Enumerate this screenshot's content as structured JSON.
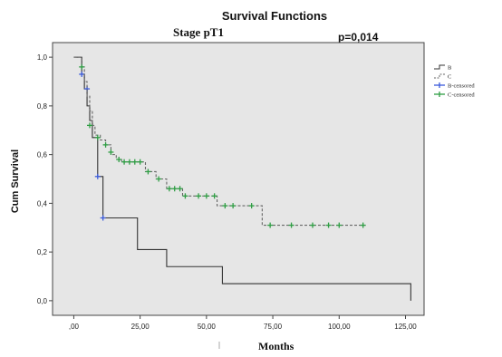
{
  "chart_data": {
    "type": "line",
    "title": "Survival Functions",
    "subtitle": "Stage pT1",
    "annotation": "p=0,014",
    "xlabel": "Months",
    "ylabel": "Cum Survival",
    "xlim": [
      -8,
      132
    ],
    "ylim": [
      -0.06,
      1.06
    ],
    "xticks": [
      0,
      25,
      50,
      75,
      100,
      125
    ],
    "xtick_labels": [
      ",00",
      "25,00",
      "50,00",
      "75,00",
      "100,00",
      "125,00"
    ],
    "yticks": [
      0,
      0.2,
      0.4,
      0.6,
      0.8,
      1.0
    ],
    "ytick_labels": [
      "0,0",
      "0,2",
      "0,4",
      "0,6",
      "0,8",
      "1,0"
    ],
    "legend_position": "right",
    "plot_background": "#e6e6e6",
    "series": [
      {
        "name": "B",
        "style": "solid",
        "color": "#333333",
        "steps": [
          [
            0,
            1.0
          ],
          [
            3,
            0.93
          ],
          [
            4,
            0.87
          ],
          [
            5,
            0.8
          ],
          [
            6,
            0.74
          ],
          [
            7,
            0.67
          ],
          [
            9,
            0.51
          ],
          [
            11,
            0.34
          ],
          [
            24,
            0.21
          ],
          [
            35,
            0.14
          ],
          [
            56,
            0.07
          ],
          [
            127,
            0.0
          ]
        ],
        "x_end": 127,
        "censored": [
          [
            3,
            0.93
          ],
          [
            5,
            0.87
          ],
          [
            9,
            0.51
          ],
          [
            11,
            0.34
          ]
        ]
      },
      {
        "name": "C",
        "style": "dashed",
        "color": "#666666",
        "steps": [
          [
            0,
            1.0
          ],
          [
            3,
            0.96
          ],
          [
            4,
            0.9
          ],
          [
            5,
            0.84
          ],
          [
            6,
            0.78
          ],
          [
            7,
            0.72
          ],
          [
            8,
            0.68
          ],
          [
            10,
            0.66
          ],
          [
            12,
            0.64
          ],
          [
            14,
            0.6
          ],
          [
            16,
            0.58
          ],
          [
            18,
            0.57
          ],
          [
            27,
            0.53
          ],
          [
            31,
            0.5
          ],
          [
            35,
            0.46
          ],
          [
            41,
            0.43
          ],
          [
            47,
            0.43
          ],
          [
            54,
            0.39
          ],
          [
            66,
            0.39
          ],
          [
            71,
            0.31
          ],
          [
            110,
            0.31
          ]
        ],
        "x_end": 110,
        "censored": [
          [
            3,
            0.96
          ],
          [
            6,
            0.72
          ],
          [
            9,
            0.67
          ],
          [
            12,
            0.64
          ],
          [
            14,
            0.61
          ],
          [
            17,
            0.58
          ],
          [
            19,
            0.57
          ],
          [
            21,
            0.57
          ],
          [
            23,
            0.57
          ],
          [
            25,
            0.57
          ],
          [
            28,
            0.53
          ],
          [
            32,
            0.5
          ],
          [
            36,
            0.46
          ],
          [
            38,
            0.46
          ],
          [
            40,
            0.46
          ],
          [
            42,
            0.43
          ],
          [
            47,
            0.43
          ],
          [
            50,
            0.43
          ],
          [
            53,
            0.43
          ],
          [
            57,
            0.39
          ],
          [
            60,
            0.39
          ],
          [
            67,
            0.39
          ],
          [
            74,
            0.31
          ],
          [
            82,
            0.31
          ],
          [
            90,
            0.31
          ],
          [
            96,
            0.31
          ],
          [
            100,
            0.31
          ],
          [
            109,
            0.31
          ]
        ]
      }
    ],
    "legend": [
      {
        "label": "B",
        "style": "step-solid",
        "color": "#333333"
      },
      {
        "label": "C",
        "style": "step-dashed",
        "color": "#666666"
      },
      {
        "label": "B-censored",
        "style": "marker",
        "color": "#3b5bdb"
      },
      {
        "label": "C-censored",
        "style": "marker",
        "color": "#2f9e44"
      }
    ]
  }
}
